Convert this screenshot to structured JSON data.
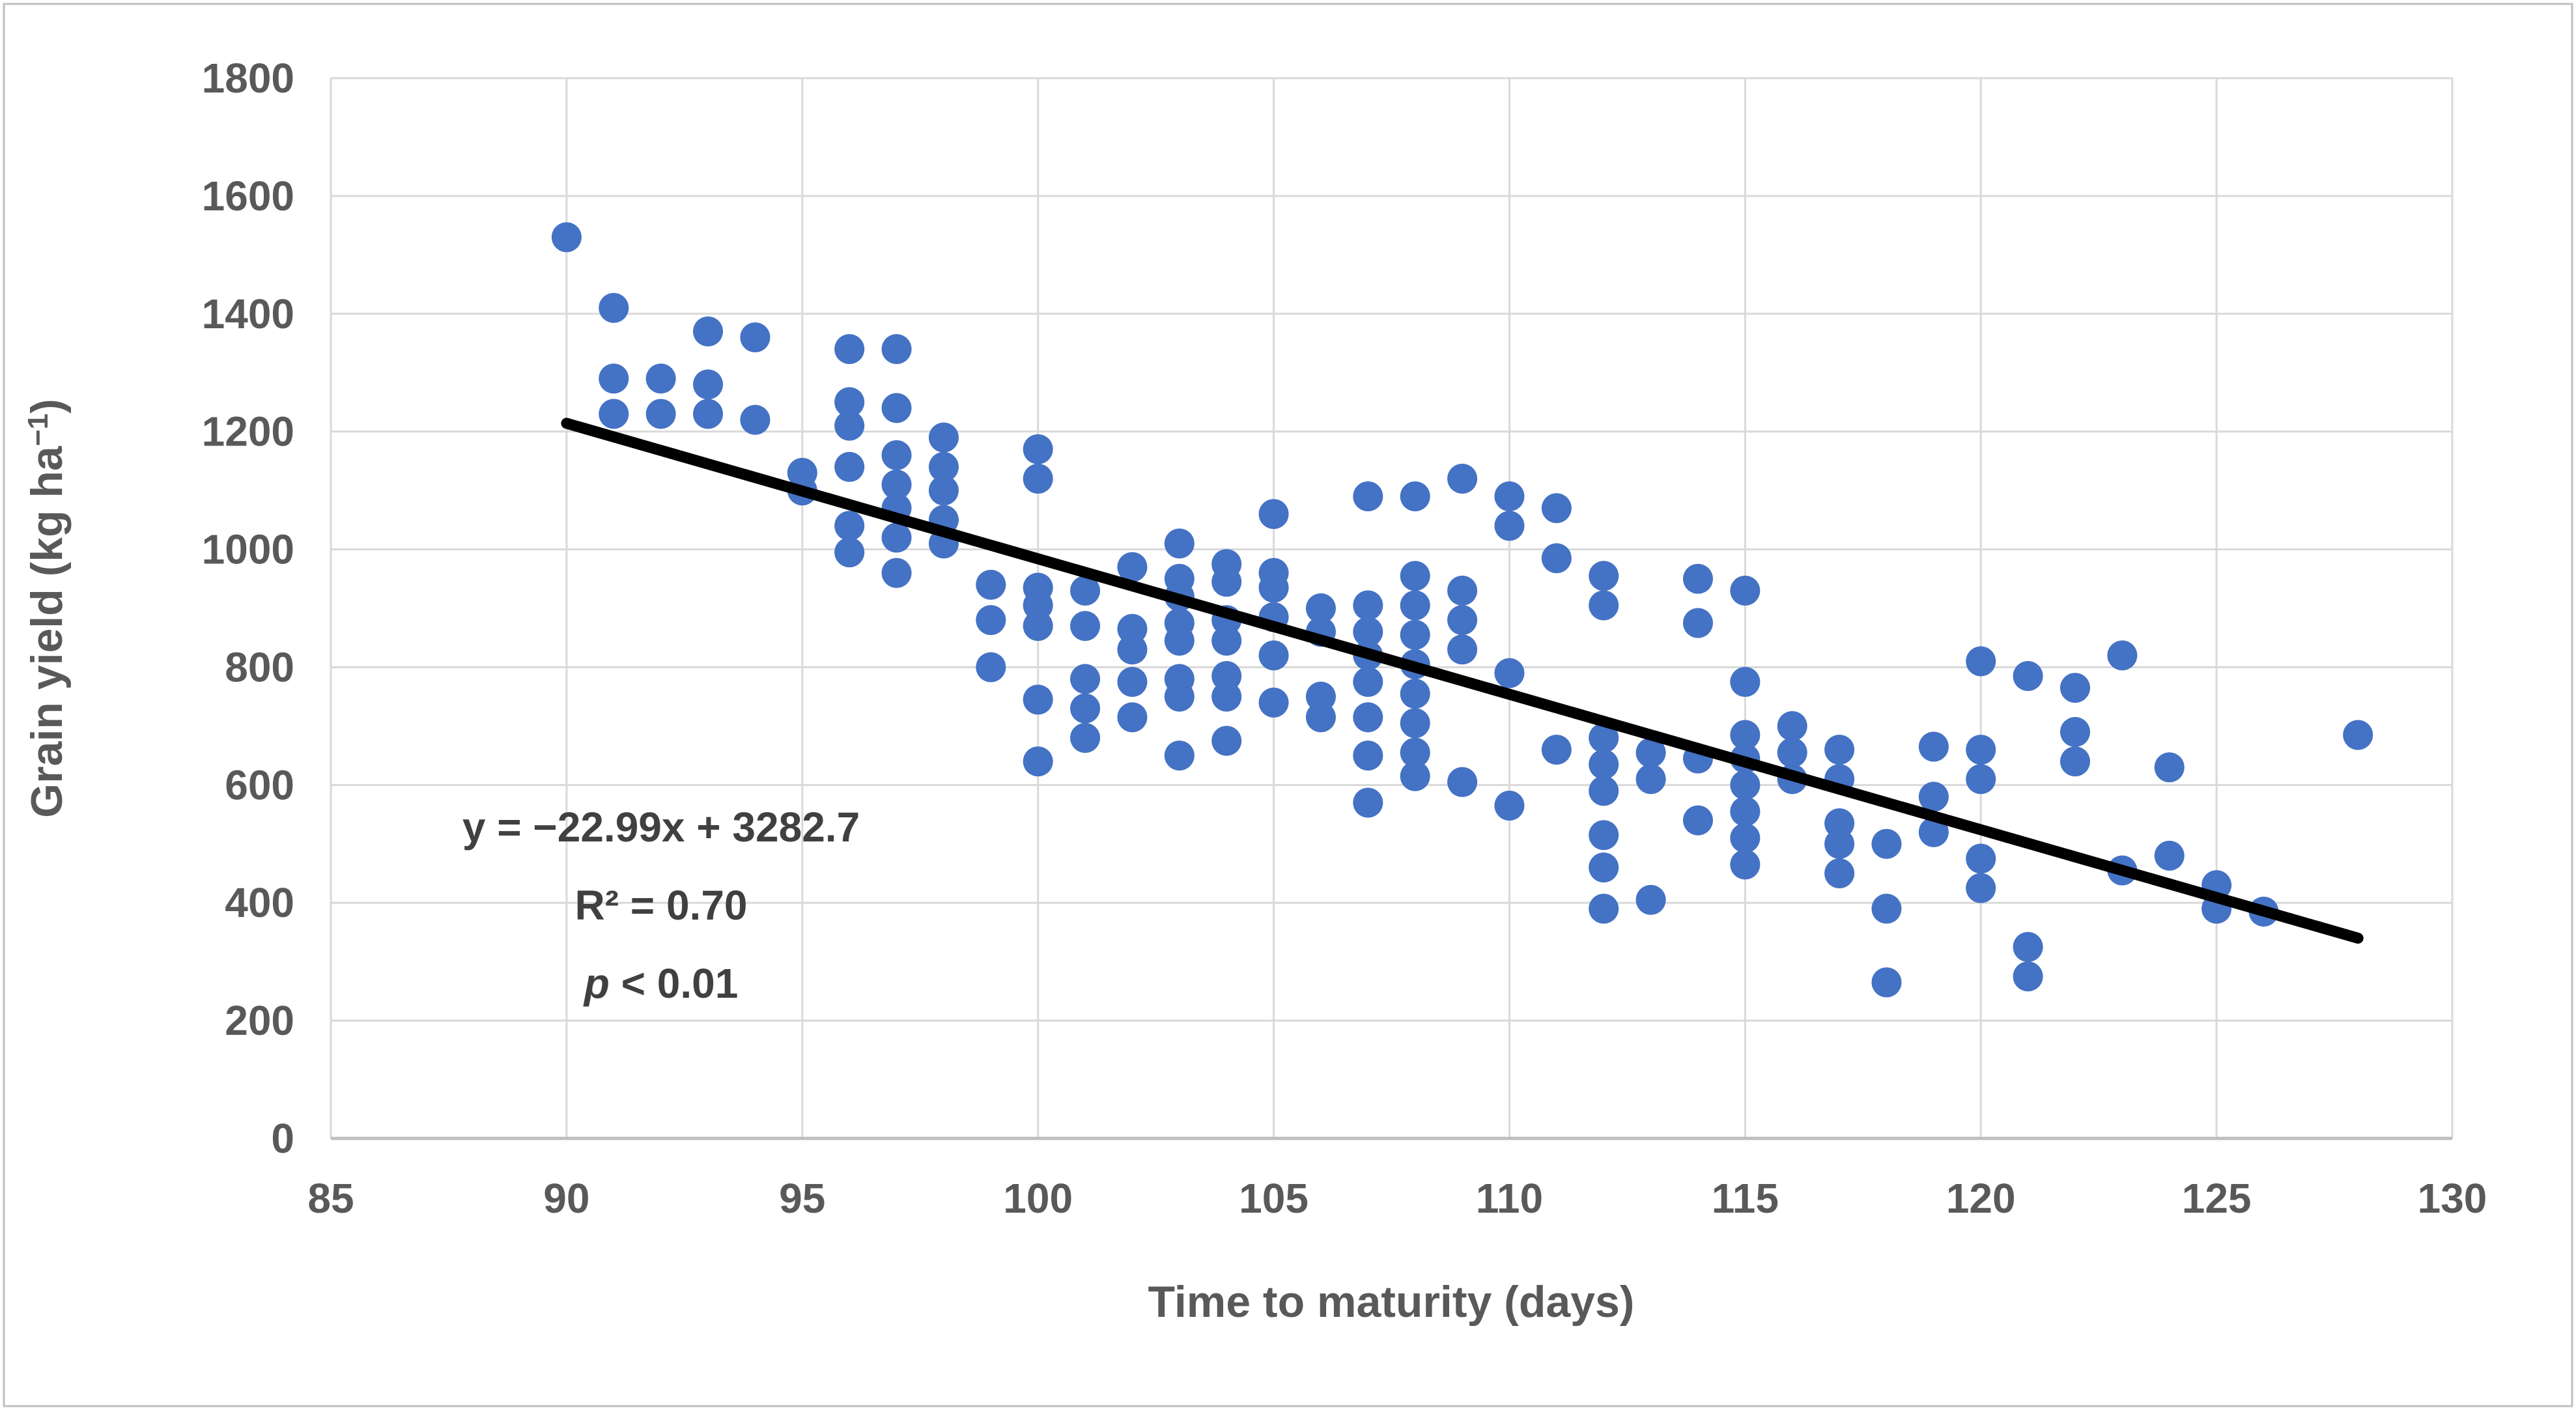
{
  "figure": {
    "background": "#ffffff",
    "border_color": "#bfbfbf"
  },
  "colors": {
    "point": "#4472C4",
    "trendline": "#000000",
    "gridline": "#d9d9d9",
    "axis_line": "#bfbfbf",
    "tick_text": "#595959",
    "annotation_text": "#404040"
  },
  "chart_data": {
    "type": "scatter",
    "title": "",
    "xlabel": "Time to maturity (days)",
    "ylabel_main": "Grain yield (kg ha",
    "ylabel_sup": "−1",
    "ylabel_close": ")",
    "xlim": [
      85,
      130
    ],
    "ylim": [
      0,
      1800
    ],
    "xticks": [
      85,
      90,
      95,
      100,
      105,
      110,
      115,
      120,
      125,
      130
    ],
    "yticks": [
      0,
      200,
      400,
      600,
      800,
      1000,
      1200,
      1400,
      1600,
      1800
    ],
    "grid": true,
    "legend_position": "none",
    "series": [
      {
        "name": "Grain yield",
        "color": "#4472C4",
        "points": [
          [
            90,
            1530
          ],
          [
            91,
            1410
          ],
          [
            91,
            1290
          ],
          [
            91,
            1230
          ],
          [
            92,
            1290
          ],
          [
            92,
            1230
          ],
          [
            93,
            1370
          ],
          [
            93,
            1280
          ],
          [
            93,
            1230
          ],
          [
            94,
            1360
          ],
          [
            94,
            1220
          ],
          [
            95,
            1130
          ],
          [
            95,
            1100
          ],
          [
            96,
            1340
          ],
          [
            96,
            1250
          ],
          [
            96,
            1210
          ],
          [
            96,
            1140
          ],
          [
            96,
            1040
          ],
          [
            96,
            995
          ],
          [
            97,
            1340
          ],
          [
            97,
            1240
          ],
          [
            97,
            1160
          ],
          [
            97,
            1110
          ],
          [
            97,
            1070
          ],
          [
            97,
            1020
          ],
          [
            97,
            960
          ],
          [
            98,
            1190
          ],
          [
            98,
            1140
          ],
          [
            98,
            1100
          ],
          [
            98,
            1050
          ],
          [
            98,
            1010
          ],
          [
            99,
            940
          ],
          [
            99,
            880
          ],
          [
            99,
            800
          ],
          [
            100,
            1170
          ],
          [
            100,
            1120
          ],
          [
            100,
            935
          ],
          [
            100,
            905
          ],
          [
            100,
            870
          ],
          [
            100,
            745
          ],
          [
            100,
            640
          ],
          [
            101,
            930
          ],
          [
            101,
            870
          ],
          [
            101,
            780
          ],
          [
            101,
            730
          ],
          [
            101,
            680
          ],
          [
            102,
            970
          ],
          [
            102,
            865
          ],
          [
            102,
            830
          ],
          [
            102,
            775
          ],
          [
            102,
            715
          ],
          [
            103,
            1010
          ],
          [
            103,
            950
          ],
          [
            103,
            920
          ],
          [
            103,
            875
          ],
          [
            103,
            845
          ],
          [
            103,
            780
          ],
          [
            103,
            750
          ],
          [
            103,
            650
          ],
          [
            104,
            975
          ],
          [
            104,
            945
          ],
          [
            104,
            880
          ],
          [
            104,
            845
          ],
          [
            104,
            785
          ],
          [
            104,
            750
          ],
          [
            104,
            675
          ],
          [
            105,
            1060
          ],
          [
            105,
            960
          ],
          [
            105,
            935
          ],
          [
            105,
            885
          ],
          [
            105,
            820
          ],
          [
            105,
            740
          ],
          [
            106,
            900
          ],
          [
            106,
            860
          ],
          [
            106,
            750
          ],
          [
            106,
            715
          ],
          [
            107,
            1090
          ],
          [
            107,
            905
          ],
          [
            107,
            860
          ],
          [
            107,
            820
          ],
          [
            107,
            775
          ],
          [
            107,
            715
          ],
          [
            107,
            650
          ],
          [
            107,
            570
          ],
          [
            108,
            1090
          ],
          [
            108,
            955
          ],
          [
            108,
            905
          ],
          [
            108,
            855
          ],
          [
            108,
            805
          ],
          [
            108,
            755
          ],
          [
            108,
            705
          ],
          [
            108,
            655
          ],
          [
            108,
            615
          ],
          [
            109,
            1120
          ],
          [
            109,
            930
          ],
          [
            109,
            880
          ],
          [
            109,
            830
          ],
          [
            109,
            605
          ],
          [
            110,
            1090
          ],
          [
            110,
            1040
          ],
          [
            110,
            790
          ],
          [
            110,
            565
          ],
          [
            111,
            1070
          ],
          [
            111,
            985
          ],
          [
            111,
            660
          ],
          [
            112,
            955
          ],
          [
            112,
            905
          ],
          [
            112,
            680
          ],
          [
            112,
            635
          ],
          [
            112,
            590
          ],
          [
            112,
            515
          ],
          [
            112,
            460
          ],
          [
            112,
            390
          ],
          [
            113,
            655
          ],
          [
            113,
            610
          ],
          [
            113,
            405
          ],
          [
            114,
            950
          ],
          [
            114,
            875
          ],
          [
            114,
            645
          ],
          [
            114,
            540
          ],
          [
            115,
            930
          ],
          [
            115,
            775
          ],
          [
            115,
            685
          ],
          [
            115,
            645
          ],
          [
            115,
            600
          ],
          [
            115,
            555
          ],
          [
            115,
            510
          ],
          [
            115,
            465
          ],
          [
            116,
            700
          ],
          [
            116,
            655
          ],
          [
            116,
            610
          ],
          [
            117,
            660
          ],
          [
            117,
            610
          ],
          [
            117,
            535
          ],
          [
            117,
            500
          ],
          [
            117,
            450
          ],
          [
            118,
            500
          ],
          [
            118,
            390
          ],
          [
            118,
            265
          ],
          [
            119,
            665
          ],
          [
            119,
            580
          ],
          [
            119,
            520
          ],
          [
            120,
            810
          ],
          [
            120,
            660
          ],
          [
            120,
            610
          ],
          [
            120,
            475
          ],
          [
            120,
            425
          ],
          [
            121,
            785
          ],
          [
            121,
            325
          ],
          [
            121,
            275
          ],
          [
            122,
            765
          ],
          [
            122,
            690
          ],
          [
            122,
            640
          ],
          [
            123,
            820
          ],
          [
            123,
            455
          ],
          [
            124,
            630
          ],
          [
            124,
            480
          ],
          [
            125,
            430
          ],
          [
            125,
            390
          ],
          [
            126,
            385
          ],
          [
            128,
            685
          ]
        ]
      }
    ],
    "trendline": {
      "x1": 90,
      "y1": 1214,
      "x2": 128,
      "y2": 340,
      "color": "#000000"
    },
    "annotation": {
      "line1": "y = −22.99x + 3282.7",
      "line2": "R² = 0.70",
      "line3_italic": "p",
      "line3_rest": " < 0.01"
    }
  }
}
